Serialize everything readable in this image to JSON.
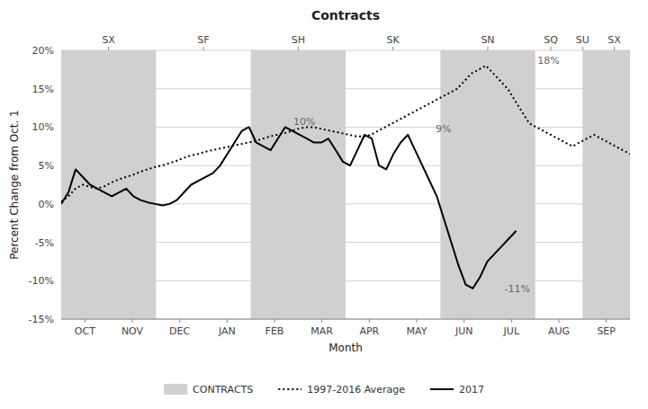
{
  "chart_data": {
    "type": "line",
    "title": "Contracts",
    "xlabel": "Month",
    "ylabel": "Percent Change from Oct. 1",
    "xlim": [
      0,
      12
    ],
    "ylim": [
      -15,
      20
    ],
    "xticks": [
      {
        "value": 0.5,
        "label": "OCT"
      },
      {
        "value": 1.5,
        "label": "NOV"
      },
      {
        "value": 2.5,
        "label": "DEC"
      },
      {
        "value": 3.5,
        "label": "JAN"
      },
      {
        "value": 4.5,
        "label": "FEB"
      },
      {
        "value": 5.5,
        "label": "MAR"
      },
      {
        "value": 6.5,
        "label": "APR"
      },
      {
        "value": 7.5,
        "label": "MAY"
      },
      {
        "value": 8.5,
        "label": "JUN"
      },
      {
        "value": 9.5,
        "label": "JUL"
      },
      {
        "value": 10.5,
        "label": "AUG"
      },
      {
        "value": 11.5,
        "label": "SEP"
      }
    ],
    "yticks": [
      {
        "value": -15,
        "label": "-15%"
      },
      {
        "value": -10,
        "label": "-10%"
      },
      {
        "value": -5,
        "label": "-5%"
      },
      {
        "value": 0,
        "label": "0%"
      },
      {
        "value": 5,
        "label": "5%"
      },
      {
        "value": 10,
        "label": "10%"
      },
      {
        "value": 15,
        "label": "15%"
      },
      {
        "value": 20,
        "label": "20%"
      }
    ],
    "x2lim": [
      0,
      12
    ],
    "x2ticks": [
      {
        "value": 1.0,
        "label": "SX"
      },
      {
        "value": 3.0,
        "label": "SF"
      },
      {
        "value": 5.0,
        "label": "SH"
      },
      {
        "value": 7.0,
        "label": "SK"
      },
      {
        "value": 9.0,
        "label": "SN"
      },
      {
        "value": 10.33,
        "label": "SQ"
      },
      {
        "value": 11.0,
        "label": "SU"
      },
      {
        "value": 11.67,
        "label": "SX"
      }
    ],
    "grid": true,
    "legend": "bottom",
    "contracts": {
      "name": "CONTRACTS",
      "color": "#aaaaaa",
      "ranges": [
        [
          0,
          2
        ],
        [
          4,
          6
        ],
        [
          8,
          10
        ],
        [
          11,
          12
        ]
      ]
    },
    "series": [
      {
        "name": "1997-2016 Average",
        "color": "#000000",
        "line_style": "dotted",
        "x": [
          0,
          0.1519,
          0.3038,
          0.4557,
          0.6076,
          0.7595,
          0.9114,
          1.0633,
          1.2152,
          1.3671,
          1.519,
          1.6709,
          1.8228,
          1.9747,
          2.1266,
          2.2785,
          2.4304,
          2.5823,
          2.7342,
          2.8861,
          3.038,
          3.1899,
          3.3418,
          3.4937,
          3.6456,
          3.7975,
          3.9494,
          4.1013,
          4.2532,
          4.4051,
          4.557,
          4.7089,
          4.8608,
          5.0127,
          5.1646,
          5.3165,
          5.4684,
          5.6203,
          5.7722,
          5.9241,
          6.0759,
          6.2278,
          6.3797,
          6.5316,
          6.6835,
          6.8354,
          6.9873,
          7.1392,
          7.2911,
          7.443,
          7.5949,
          7.7468,
          7.8987,
          8.0506,
          8.2025,
          8.3544,
          8.5063,
          8.6582,
          8.8101,
          8.962,
          9.1139,
          9.2658,
          9.4177,
          9.5696,
          9.7215,
          9.8734,
          10.0253,
          10.1772,
          10.3291,
          10.481,
          10.6329,
          10.7848,
          10.9367,
          11.0886,
          11.2405,
          11.3924,
          11.5443,
          11.6962,
          11.8481,
          12
        ],
        "values": [
          0.3,
          1.0,
          2.0,
          2.5,
          2.2,
          2.0,
          2.3,
          2.8,
          3.2,
          3.5,
          3.8,
          4.2,
          4.5,
          4.8,
          5.0,
          5.3,
          5.6,
          6.0,
          6.3,
          6.5,
          6.8,
          7.0,
          7.2,
          7.4,
          7.6,
          7.8,
          8.0,
          8.2,
          8.5,
          8.8,
          9.0,
          9.2,
          9.5,
          9.8,
          10.0,
          10.0,
          9.8,
          9.6,
          9.4,
          9.2,
          9.0,
          8.8,
          8.8,
          9.0,
          9.5,
          10.0,
          10.5,
          11.0,
          11.5,
          12.0,
          12.5,
          13.0,
          13.5,
          14.0,
          14.5,
          15.0,
          16.0,
          17.0,
          17.5,
          18.0,
          17.0,
          16.0,
          15.0,
          13.5,
          12.0,
          10.5,
          10.0,
          9.5,
          9.0,
          8.5,
          8.0,
          7.5,
          8.0,
          8.5,
          9.0,
          8.5,
          8.0,
          7.5,
          7.0,
          6.5
        ]
      },
      {
        "name": "2017",
        "color": "#000000",
        "line_style": "solid",
        "x": [
          0,
          0.1524,
          0.3048,
          0.4571,
          0.6095,
          0.7619,
          0.9143,
          1.0667,
          1.219,
          1.3714,
          1.5238,
          1.6762,
          1.8286,
          1.981,
          2.1333,
          2.2857,
          2.4381,
          2.5905,
          2.7429,
          2.8952,
          3.0476,
          3.2,
          3.3524,
          3.5048,
          3.6571,
          3.8095,
          3.9619,
          4.1143,
          4.2667,
          4.419,
          4.5714,
          4.7238,
          4.8762,
          5.0286,
          5.181,
          5.3333,
          5.4857,
          5.6381,
          5.7905,
          5.9429,
          6.0952,
          6.2476,
          6.4,
          6.5524,
          6.7048,
          6.8571,
          7.0095,
          7.1619,
          7.3143,
          7.4667,
          7.619,
          7.7714,
          7.9238,
          8.0762,
          8.2286,
          8.381,
          8.5333,
          8.6857,
          8.8381,
          8.9905,
          9.1429,
          9.2952,
          9.4476,
          9.6
        ],
        "values": [
          0.0,
          1.5,
          4.5,
          3.5,
          2.5,
          2.0,
          1.5,
          1.0,
          1.5,
          2.0,
          1.0,
          0.5,
          0.2,
          0.0,
          -0.2,
          0.0,
          0.5,
          1.5,
          2.5,
          3.0,
          3.5,
          4.0,
          5.0,
          6.5,
          8.0,
          9.5,
          10.0,
          8.0,
          7.5,
          7.0,
          8.5,
          10.0,
          9.5,
          9.0,
          8.5,
          8.0,
          8.0,
          8.5,
          7.0,
          5.5,
          5.0,
          7.0,
          9.0,
          8.5,
          5.0,
          4.5,
          6.5,
          8.0,
          9.0,
          7.0,
          5.0,
          3.0,
          1.0,
          -2.0,
          -5.0,
          -8.0,
          -10.5,
          -11.0,
          -9.5,
          -7.5,
          -6.5,
          -5.5,
          -4.5,
          -3.5
        ]
      }
    ],
    "annotations": [
      {
        "text": "10%",
        "x": 4.9,
        "y": 10.3,
        "color": "#666666"
      },
      {
        "text": "9%",
        "x": 7.9,
        "y": 9.3,
        "color": "#666666"
      },
      {
        "text": "-11%",
        "x": 9.35,
        "y": -11.5,
        "color": "#666666"
      },
      {
        "text": "18%",
        "x": 10.05,
        "y": 18.2,
        "color": "#666666"
      }
    ]
  }
}
